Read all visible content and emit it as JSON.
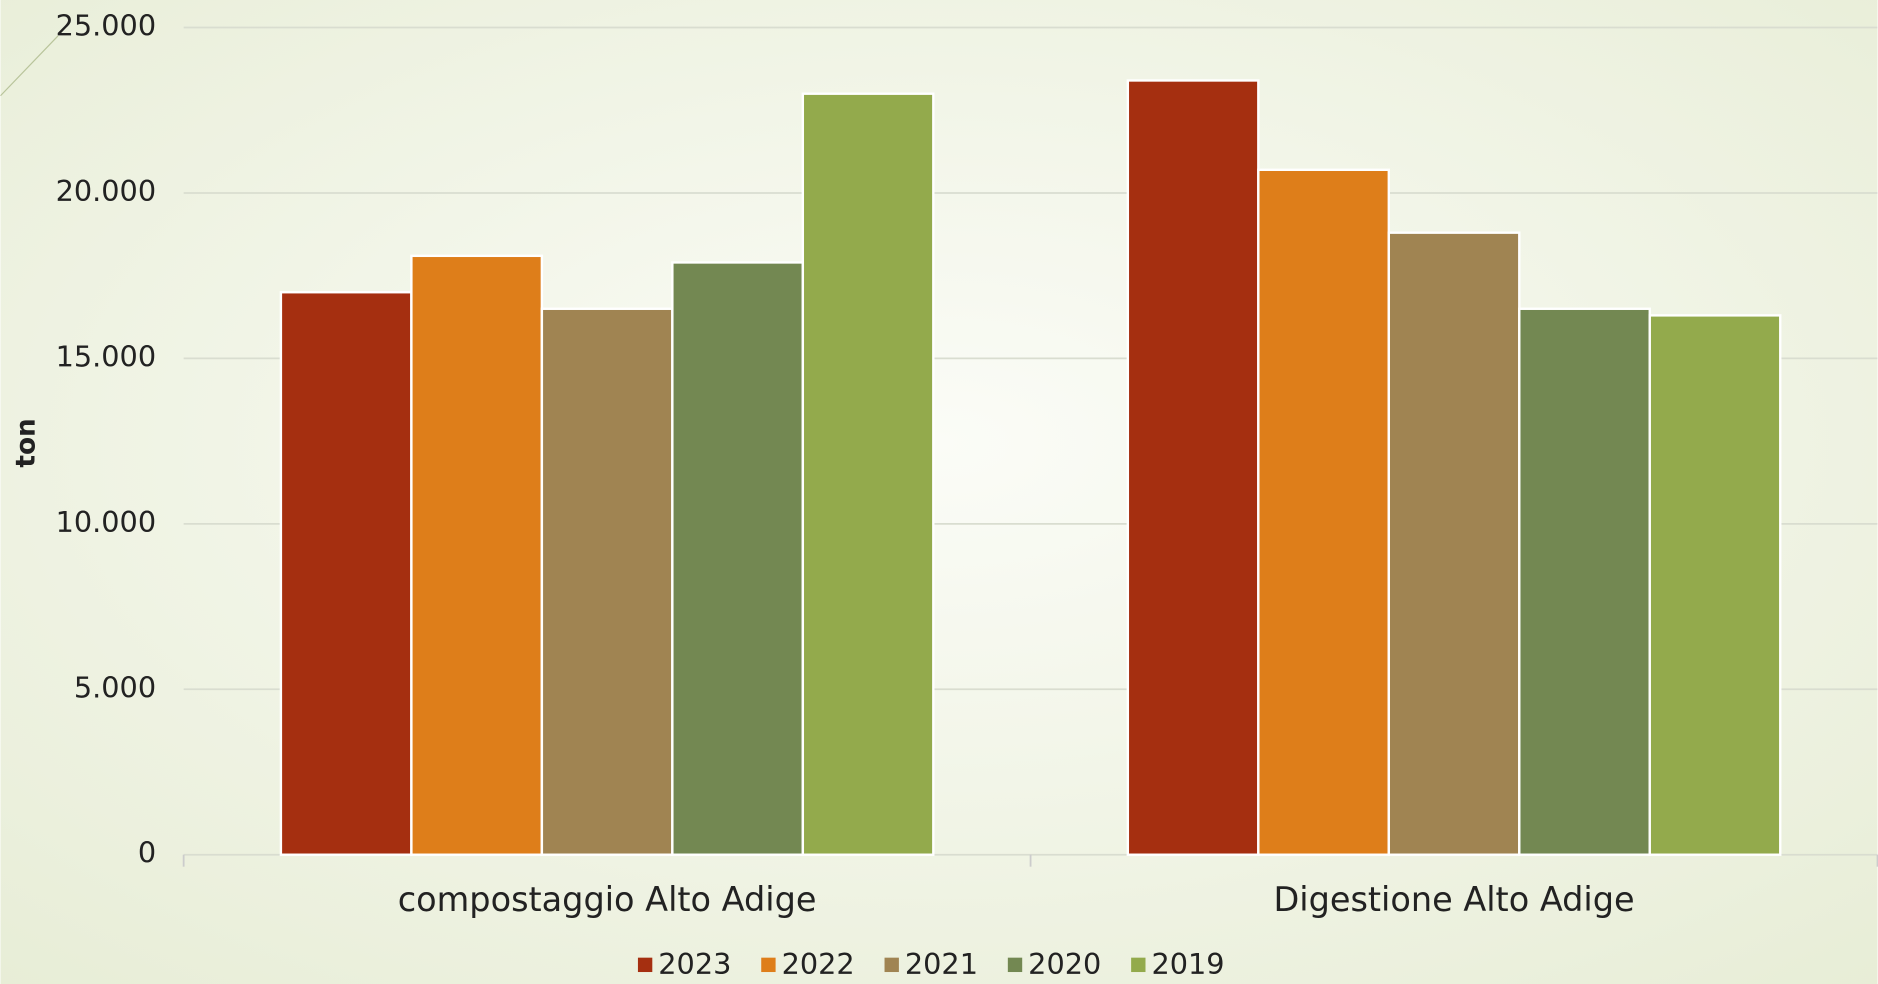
{
  "chart_data": {
    "type": "bar",
    "categories": [
      "compostaggio Alto Adige",
      "Digestione Alto Adige"
    ],
    "series": [
      {
        "name": "2023",
        "color": "#a52f10",
        "values": [
          17000,
          23400
        ]
      },
      {
        "name": "2022",
        "color": "#de7e1a",
        "values": [
          18100,
          20700
        ]
      },
      {
        "name": "2021",
        "color": "#a08452",
        "values": [
          16500,
          18800
        ]
      },
      {
        "name": "2020",
        "color": "#738852",
        "values": [
          17900,
          16500
        ]
      },
      {
        "name": "2019",
        "color": "#93aa4c",
        "values": [
          23000,
          16300
        ]
      }
    ],
    "y_label": "ton",
    "ylim": [
      0,
      25000
    ],
    "yticks": [
      0,
      {
        "value": 5000,
        "label": "5.000"
      },
      {
        "value": 10000,
        "label": "10.000"
      },
      {
        "value": 15000,
        "label": "15.000"
      },
      {
        "value": 20000,
        "label": "20.000"
      },
      {
        "value": 25000,
        "label": "25.000"
      }
    ],
    "grid": true,
    "legend": "bottom"
  }
}
